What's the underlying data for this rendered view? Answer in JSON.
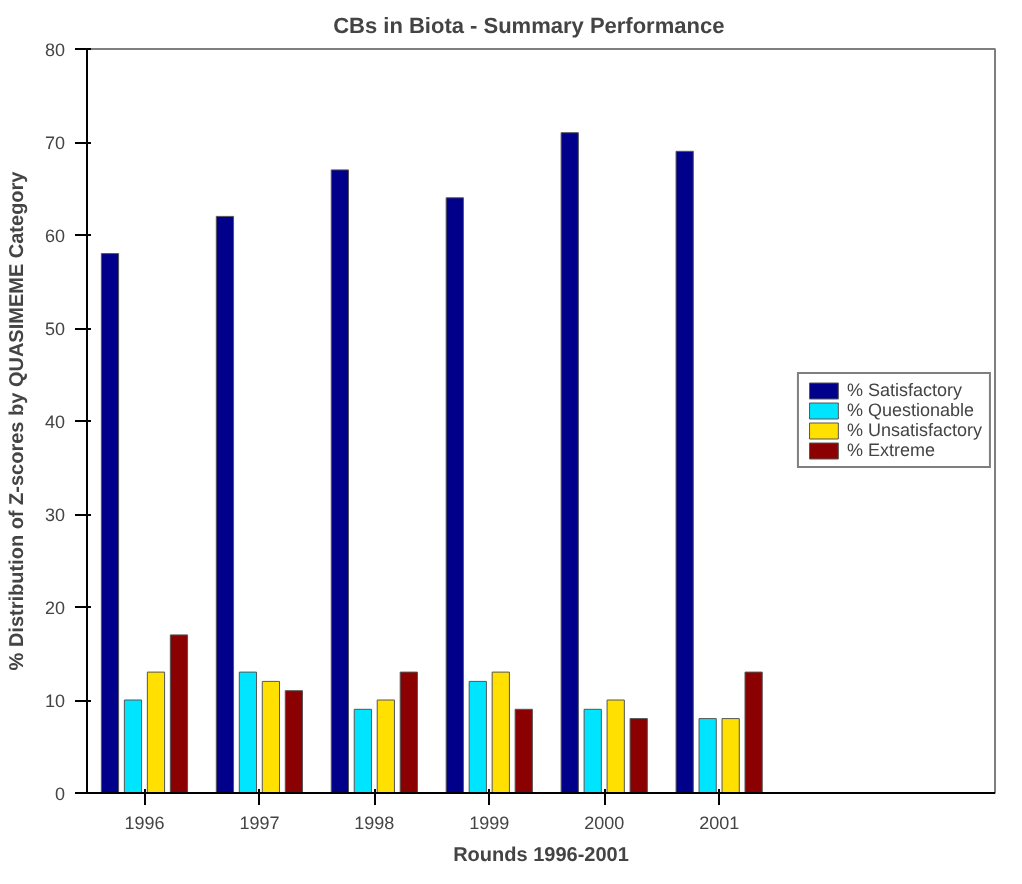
{
  "chart_data": {
    "type": "bar",
    "title": "CBs in Biota   -   Summary Performance",
    "xlabel": "Rounds 1996-2001",
    "ylabel": "% Distribution of Z-scores by QUASIMEME Category",
    "categories": [
      "1996",
      "1997",
      "1998",
      "1999",
      "2000",
      "2001"
    ],
    "series": [
      {
        "name": "% Satisfactory",
        "color": "#00008b",
        "values": [
          58,
          62,
          67,
          64,
          71,
          69
        ]
      },
      {
        "name": "% Questionable",
        "color": "#00e5ff",
        "values": [
          10,
          13,
          9,
          12,
          9,
          8
        ]
      },
      {
        "name": "% Unsatisfactory",
        "color": "#ffe000",
        "values": [
          13,
          12,
          10,
          13,
          10,
          8
        ]
      },
      {
        "name": "% Extreme",
        "color": "#8b0000",
        "values": [
          17,
          11,
          13,
          9,
          8,
          13
        ]
      }
    ],
    "ylim": [
      0,
      80
    ],
    "yticks": [
      0,
      10,
      20,
      30,
      40,
      50,
      60,
      70,
      80
    ],
    "grid": false,
    "legend": "right"
  }
}
